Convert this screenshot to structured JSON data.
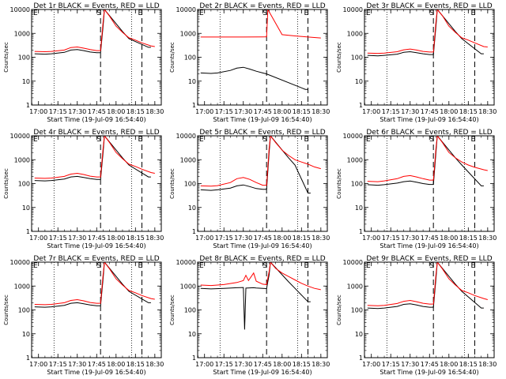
{
  "chart_data": [
    {
      "type": "line",
      "title": "Det 1r BLACK = Events, RED = LLD",
      "xlabel": "Start Time (19-Jul-09 16:54:40)",
      "ylabel": "Counts/sec",
      "ylim": [
        1,
        10000
      ],
      "yscale": "log",
      "x_ticks": [
        "17:00",
        "17:15",
        "17:30",
        "17:45",
        "18:00",
        "18:15",
        "18:30"
      ],
      "y_ticks": [
        "1",
        "10",
        "100",
        "1000",
        "10000"
      ],
      "markers": [
        "S",
        "E"
      ],
      "series": [
        {
          "color": "#000000",
          "x": [
            "16:57",
            "17:05",
            "17:10",
            "17:20",
            "17:25",
            "17:30",
            "17:35",
            "17:40",
            "17:45",
            "17:48",
            "17:50",
            "17:51",
            "18:05",
            "18:10",
            "18:25",
            "18:27"
          ],
          "y": [
            140,
            135,
            140,
            160,
            200,
            210,
            190,
            165,
            155,
            155,
            2000,
            10000,
            1200,
            600,
            260,
            260
          ]
        },
        {
          "color": "#ff0000",
          "x": [
            "16:57",
            "17:05",
            "17:10",
            "17:20",
            "17:25",
            "17:30",
            "17:35",
            "17:40",
            "17:45",
            "17:48",
            "17:50",
            "17:51",
            "17:55",
            "18:00",
            "18:05",
            "18:10",
            "18:15",
            "18:20",
            "18:27",
            "18:30"
          ],
          "y": [
            175,
            170,
            175,
            200,
            255,
            270,
            240,
            210,
            190,
            190,
            3000,
            10000,
            5200,
            2000,
            1100,
            650,
            520,
            400,
            300,
            280
          ]
        }
      ]
    },
    {
      "type": "line",
      "title": "Det 2r BLACK = Events, RED = LLD",
      "xlabel": "Start Time (19-Jul-09 16:54:40)",
      "ylabel": "Counts/sec",
      "ylim": [
        1,
        10000
      ],
      "yscale": "log",
      "x_ticks": [
        "17:00",
        "17:15",
        "17:30",
        "17:45",
        "18:00",
        "18:15",
        "18:30"
      ],
      "y_ticks": [
        "1",
        "10",
        "100",
        "1000",
        "10000"
      ],
      "markers": [
        "S",
        "E"
      ],
      "series": [
        {
          "color": "#000000",
          "x": [
            "16:57",
            "17:05",
            "17:10",
            "17:20",
            "17:25",
            "17:30",
            "17:35",
            "17:40",
            "17:45",
            "17:48",
            "18:18",
            "18:20"
          ],
          "y": [
            22,
            21,
            22,
            28,
            35,
            38,
            32,
            26,
            22,
            20,
            4.5,
            4.5
          ]
        },
        {
          "color": "#ff0000",
          "x": [
            "16:57",
            "17:10",
            "17:30",
            "17:45",
            "17:48",
            "17:49",
            "18:00",
            "18:10",
            "18:20",
            "18:30"
          ],
          "y": [
            700,
            700,
            700,
            710,
            720,
            10000,
            880,
            780,
            700,
            640
          ]
        }
      ]
    },
    {
      "type": "line",
      "title": "Det 3r BLACK = Events, RED = LLD",
      "xlabel": "Start Time (19-Jul-09 16:54:40)",
      "ylabel": "Counts/sec",
      "ylim": [
        1,
        10000
      ],
      "yscale": "log",
      "x_ticks": [
        "17:00",
        "17:15",
        "17:30",
        "17:45",
        "18:00",
        "18:15",
        "18:30"
      ],
      "y_ticks": [
        "1",
        "10",
        "100",
        "1000",
        "10000"
      ],
      "markers": [
        "S",
        "E"
      ],
      "series": [
        {
          "color": "#000000",
          "x": [
            "16:57",
            "17:05",
            "17:10",
            "17:20",
            "17:25",
            "17:30",
            "17:35",
            "17:40",
            "17:45",
            "17:48",
            "17:50",
            "17:51",
            "18:05",
            "18:10",
            "18:25",
            "18:27"
          ],
          "y": [
            120,
            115,
            120,
            135,
            160,
            170,
            155,
            140,
            130,
            130,
            2000,
            10000,
            1200,
            600,
            140,
            140
          ]
        },
        {
          "color": "#ff0000",
          "x": [
            "16:57",
            "17:05",
            "17:10",
            "17:20",
            "17:25",
            "17:30",
            "17:35",
            "17:40",
            "17:45",
            "17:48",
            "17:50",
            "17:51",
            "17:55",
            "18:00",
            "18:05",
            "18:10",
            "18:15",
            "18:20",
            "18:27",
            "18:30"
          ],
          "y": [
            150,
            145,
            150,
            170,
            205,
            220,
            200,
            175,
            165,
            165,
            3000,
            10000,
            5500,
            2000,
            1100,
            650,
            520,
            400,
            280,
            270
          ]
        }
      ]
    },
    {
      "type": "line",
      "title": "Det 4r BLACK = Events, RED = LLD",
      "xlabel": "Start Time (19-Jul-09 16:54:40)",
      "ylabel": "Counts/sec",
      "ylim": [
        1,
        10000
      ],
      "yscale": "log",
      "x_ticks": [
        "17:00",
        "17:15",
        "17:30",
        "17:45",
        "18:00",
        "18:15",
        "18:30"
      ],
      "y_ticks": [
        "1",
        "10",
        "100",
        "1000",
        "10000"
      ],
      "markers": [
        "S",
        "E"
      ],
      "series": [
        {
          "color": "#000000",
          "x": [
            "16:57",
            "17:05",
            "17:10",
            "17:20",
            "17:25",
            "17:30",
            "17:35",
            "17:40",
            "17:45",
            "17:48",
            "17:50",
            "17:51",
            "18:05",
            "18:10",
            "18:25",
            "18:27"
          ],
          "y": [
            135,
            130,
            135,
            155,
            190,
            200,
            180,
            160,
            150,
            150,
            2000,
            10000,
            1200,
            600,
            190,
            190
          ]
        },
        {
          "color": "#ff0000",
          "x": [
            "16:57",
            "17:05",
            "17:10",
            "17:20",
            "17:25",
            "17:30",
            "17:35",
            "17:40",
            "17:45",
            "17:48",
            "17:50",
            "17:51",
            "17:55",
            "18:00",
            "18:05",
            "18:10",
            "18:15",
            "18:20",
            "18:27",
            "18:30"
          ],
          "y": [
            170,
            165,
            170,
            200,
            250,
            270,
            240,
            205,
            190,
            190,
            3000,
            10000,
            5200,
            2000,
            1100,
            650,
            520,
            400,
            290,
            270
          ]
        }
      ]
    },
    {
      "type": "line",
      "title": "Det 5r BLACK = Events, RED = LLD",
      "xlabel": "Start Time (19-Jul-09 16:54:40)",
      "ylabel": "Counts/sec",
      "ylim": [
        1,
        10000
      ],
      "yscale": "log",
      "x_ticks": [
        "17:00",
        "17:15",
        "17:30",
        "17:45",
        "18:00",
        "18:15",
        "18:30"
      ],
      "y_ticks": [
        "1",
        "10",
        "100",
        "1000",
        "10000"
      ],
      "markers": [
        "S",
        "E"
      ],
      "series": [
        {
          "color": "#000000",
          "x": [
            "16:57",
            "17:05",
            "17:10",
            "17:20",
            "17:25",
            "17:30",
            "17:35",
            "17:40",
            "17:45",
            "17:48",
            "17:50",
            "17:51",
            "18:05",
            "18:10",
            "18:20",
            "18:22"
          ],
          "y": [
            55,
            52,
            55,
            65,
            80,
            88,
            75,
            62,
            58,
            58,
            2000,
            10000,
            1200,
            600,
            40,
            40
          ]
        },
        {
          "color": "#ff0000",
          "x": [
            "16:57",
            "17:05",
            "17:10",
            "17:20",
            "17:25",
            "17:30",
            "17:35",
            "17:40",
            "17:45",
            "17:48",
            "17:50",
            "17:51",
            "17:55",
            "18:00",
            "18:05",
            "18:10",
            "18:15",
            "18:20",
            "18:25",
            "18:30"
          ],
          "y": [
            80,
            78,
            82,
            110,
            160,
            180,
            150,
            110,
            85,
            85,
            3000,
            10000,
            5200,
            2500,
            1500,
            1000,
            800,
            650,
            500,
            420
          ]
        }
      ]
    },
    {
      "type": "line",
      "title": "Det 6r BLACK = Events, RED = LLD",
      "xlabel": "Start Time (19-Jul-09 16:54:40)",
      "ylabel": "Counts/sec",
      "ylim": [
        1,
        10000
      ],
      "yscale": "log",
      "x_ticks": [
        "17:00",
        "17:15",
        "17:30",
        "17:45",
        "18:00",
        "18:15",
        "18:30"
      ],
      "y_ticks": [
        "1",
        "10",
        "100",
        "1000",
        "10000"
      ],
      "markers": [
        "S",
        "E"
      ],
      "series": [
        {
          "color": "#000000",
          "x": [
            "16:57",
            "17:05",
            "17:10",
            "17:20",
            "17:25",
            "17:30",
            "17:35",
            "17:40",
            "17:45",
            "17:48",
            "17:50",
            "17:51",
            "18:05",
            "18:10",
            "18:25",
            "18:27"
          ],
          "y": [
            90,
            85,
            90,
            105,
            120,
            128,
            115,
            100,
            92,
            92,
            2000,
            10000,
            1200,
            600,
            80,
            80
          ]
        },
        {
          "color": "#ff0000",
          "x": [
            "16:57",
            "17:05",
            "17:10",
            "17:20",
            "17:25",
            "17:30",
            "17:35",
            "17:40",
            "17:45",
            "17:48",
            "17:50",
            "17:51",
            "17:55",
            "18:00",
            "18:05",
            "18:10",
            "18:15",
            "18:20",
            "18:27",
            "18:30"
          ],
          "y": [
            125,
            120,
            130,
            160,
            200,
            215,
            190,
            160,
            140,
            140,
            3000,
            10000,
            5200,
            2000,
            1200,
            800,
            600,
            480,
            380,
            350
          ]
        }
      ]
    },
    {
      "type": "line",
      "title": "Det 7r BLACK = Events, RED = LLD",
      "xlabel": "Start Time (19-Jul-09 16:54:40)",
      "ylabel": "Counts/sec",
      "ylim": [
        1,
        10000
      ],
      "yscale": "log",
      "x_ticks": [
        "17:00",
        "17:15",
        "17:30",
        "17:45",
        "18:00",
        "18:15",
        "18:30"
      ],
      "y_ticks": [
        "1",
        "10",
        "100",
        "1000",
        "10000"
      ],
      "markers": [
        "S",
        "E"
      ],
      "series": [
        {
          "color": "#000000",
          "x": [
            "16:57",
            "17:05",
            "17:10",
            "17:20",
            "17:25",
            "17:30",
            "17:35",
            "17:40",
            "17:45",
            "17:48",
            "17:50",
            "17:51",
            "18:05",
            "18:10",
            "18:25",
            "18:27"
          ],
          "y": [
            135,
            130,
            135,
            155,
            190,
            200,
            180,
            160,
            150,
            150,
            2000,
            10000,
            1200,
            600,
            200,
            200
          ]
        },
        {
          "color": "#ff0000",
          "x": [
            "16:57",
            "17:05",
            "17:10",
            "17:20",
            "17:25",
            "17:30",
            "17:35",
            "17:40",
            "17:45",
            "17:48",
            "17:50",
            "17:51",
            "17:55",
            "18:00",
            "18:05",
            "18:10",
            "18:15",
            "18:20",
            "18:27",
            "18:30"
          ],
          "y": [
            170,
            165,
            170,
            200,
            250,
            270,
            240,
            205,
            190,
            190,
            3000,
            10000,
            5200,
            2000,
            1100,
            650,
            520,
            400,
            300,
            280
          ]
        }
      ]
    },
    {
      "type": "line",
      "title": "Det 8r BLACK = Events, RED = LLD",
      "xlabel": "Start Time (19-Jul-09 16:54:40)",
      "ylabel": "Counts/sec",
      "ylim": [
        1,
        10000
      ],
      "yscale": "log",
      "x_ticks": [
        "17:00",
        "17:15",
        "17:30",
        "17:45",
        "18:00",
        "18:15",
        "18:30"
      ],
      "y_ticks": [
        "1",
        "10",
        "100",
        "1000",
        "10000"
      ],
      "markers": [
        "S",
        "E"
      ],
      "series": [
        {
          "color": "#000000",
          "x": [
            "16:57",
            "17:05",
            "17:15",
            "17:25",
            "17:30",
            "17:31",
            "17:32",
            "17:38",
            "17:40",
            "17:45",
            "17:48",
            "17:50",
            "17:51",
            "18:05",
            "18:10",
            "18:20",
            "18:22"
          ],
          "y": [
            800,
            760,
            800,
            850,
            870,
            15,
            820,
            850,
            830,
            800,
            780,
            3000,
            10000,
            1500,
            800,
            220,
            220
          ]
        },
        {
          "color": "#ff0000",
          "x": [
            "16:57",
            "17:05",
            "17:15",
            "17:25",
            "17:30",
            "17:32",
            "17:34",
            "17:38",
            "17:40",
            "17:45",
            "17:48",
            "17:50",
            "17:51",
            "17:55",
            "18:00",
            "18:05",
            "18:10",
            "18:15",
            "18:20",
            "18:25",
            "18:30"
          ],
          "y": [
            1100,
            1050,
            1150,
            1400,
            1700,
            2800,
            1700,
            3500,
            1600,
            1200,
            1150,
            4000,
            10000,
            5500,
            3500,
            2500,
            1800,
            1300,
            1000,
            800,
            700
          ]
        }
      ]
    },
    {
      "type": "line",
      "title": "Det 9r BLACK = Events, RED = LLD",
      "xlabel": "Start Time (19-Jul-09 16:54:40)",
      "ylabel": "Counts/sec",
      "ylim": [
        1,
        10000
      ],
      "yscale": "log",
      "x_ticks": [
        "17:00",
        "17:15",
        "17:30",
        "17:45",
        "18:00",
        "18:15",
        "18:30"
      ],
      "y_ticks": [
        "1",
        "10",
        "100",
        "1000",
        "10000"
      ],
      "markers": [
        "S",
        "E"
      ],
      "series": [
        {
          "color": "#000000",
          "x": [
            "16:57",
            "17:05",
            "17:10",
            "17:20",
            "17:25",
            "17:30",
            "17:35",
            "17:40",
            "17:45",
            "17:48",
            "17:50",
            "17:51",
            "18:05",
            "18:10",
            "18:25",
            "18:27"
          ],
          "y": [
            120,
            115,
            120,
            140,
            170,
            180,
            160,
            140,
            130,
            130,
            2000,
            10000,
            1200,
            600,
            120,
            120
          ]
        },
        {
          "color": "#ff0000",
          "x": [
            "16:57",
            "17:05",
            "17:10",
            "17:20",
            "17:25",
            "17:30",
            "17:35",
            "17:40",
            "17:45",
            "17:48",
            "17:50",
            "17:51",
            "17:55",
            "18:00",
            "18:05",
            "18:10",
            "18:15",
            "18:20",
            "18:27",
            "18:30"
          ],
          "y": [
            155,
            150,
            155,
            185,
            230,
            250,
            220,
            190,
            175,
            175,
            3000,
            10000,
            5200,
            2000,
            1100,
            650,
            520,
            400,
            300,
            270
          ]
        }
      ]
    }
  ]
}
